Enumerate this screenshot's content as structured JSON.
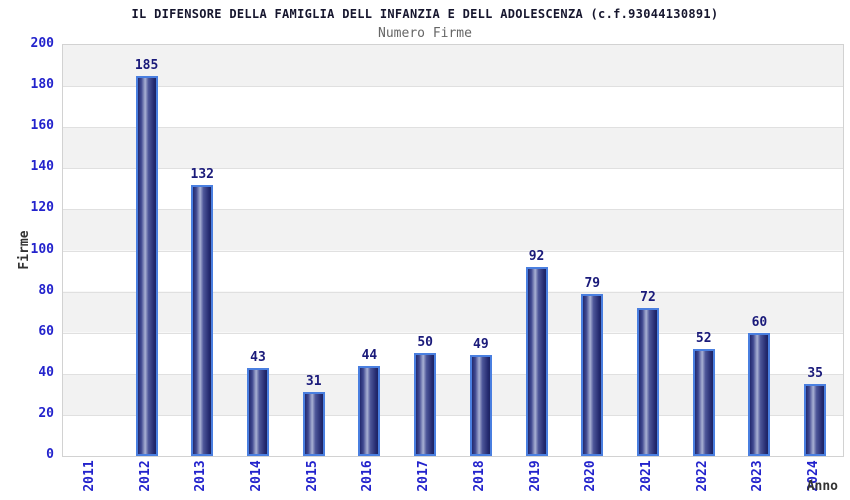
{
  "chart_data": {
    "type": "bar",
    "title": "IL DIFENSORE DELLA FAMIGLIA DELL INFANZIA E DELL ADOLESCENZA (c.f.93044130891)",
    "subtitle": "Numero Firme",
    "categories": [
      "2011",
      "2012",
      "2013",
      "2014",
      "2015",
      "2016",
      "2017",
      "2018",
      "2019",
      "2020",
      "2021",
      "2022",
      "2023",
      "2024"
    ],
    "values": [
      0,
      185,
      132,
      43,
      31,
      44,
      50,
      49,
      92,
      79,
      72,
      52,
      60,
      35
    ],
    "xlabel": "Anno",
    "ylabel": "Firme",
    "ylim": [
      0,
      200
    ],
    "ytick_step": 20,
    "yticks": [
      0,
      20,
      40,
      60,
      80,
      100,
      120,
      140,
      160,
      180,
      200
    ],
    "grid": true,
    "legend_position": "none",
    "bar_value_labels": true,
    "zero_value_bars_hidden": true,
    "band_fill_alternating": true
  },
  "colors": {
    "axis_text": "#2323cc",
    "value_label": "#1a1a7a",
    "title_text": "#16162e",
    "subtitle_text": "#666666",
    "axis_title_text": "#333333",
    "bar_border": "#4a7fe0",
    "bar_dark": "#23296e",
    "bar_highlight": "#a9b1d4",
    "band_fill": "#f2f2f2",
    "gridline": "#e0e0e0",
    "plot_border": "#d2d2d2",
    "background": "#ffffff"
  }
}
